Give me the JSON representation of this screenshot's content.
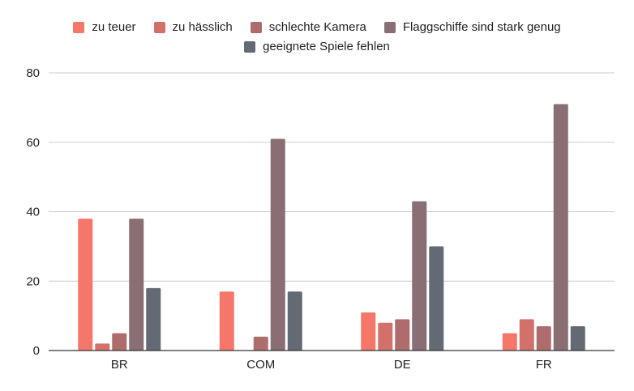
{
  "chart_data": {
    "type": "bar",
    "categories": [
      "BR",
      "COM",
      "DE",
      "FR"
    ],
    "series": [
      {
        "name": "zu teuer",
        "color": "#f4776a",
        "values": [
          38,
          17,
          11,
          5
        ]
      },
      {
        "name": "zu hässlich",
        "color": "#d2716a",
        "values": [
          2,
          0,
          8,
          9
        ]
      },
      {
        "name": "schlechte Kamera",
        "color": "#af6c6c",
        "values": [
          5,
          4,
          9,
          7
        ]
      },
      {
        "name": "Flaggschiffe sind stark genug",
        "color": "#896e74",
        "values": [
          38,
          61,
          43,
          71
        ]
      },
      {
        "name": "geeignete Spiele fehlen",
        "color": "#646a73",
        "values": [
          18,
          17,
          30,
          7
        ]
      }
    ],
    "ylim": [
      0,
      80
    ],
    "yticks": [
      0,
      20,
      40,
      60,
      80
    ],
    "grid": true,
    "legend_position": "top"
  }
}
